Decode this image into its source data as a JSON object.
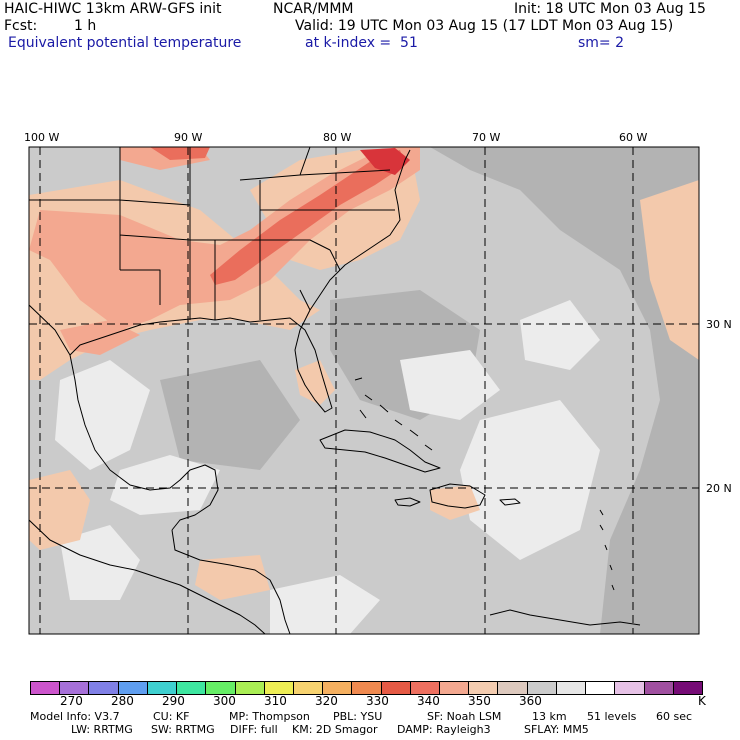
{
  "header": {
    "model": "HAIC-HIWC 13km ARW-GFS init",
    "org": "NCAR/MMM",
    "init": "Init: 18 UTC Mon 03 Aug 15",
    "fcst_label": "Fcst:",
    "fcst_value": "1 h",
    "valid": "Valid: 19 UTC Mon 03 Aug 15 (17 LDT Mon 03 Aug 15)",
    "field": "Equivalent potential temperature",
    "level": "at k-index =  51",
    "smooth": "sm= 2"
  },
  "map": {
    "lon_labels": [
      "100 W",
      "90 W",
      "80 W",
      "70 W",
      "60 W"
    ],
    "lat_labels": [
      "30 N",
      "20 N"
    ],
    "colors": {
      "land_background": "#cbcbcb",
      "dark_gray": "#b3b3b3",
      "light": "#ececec",
      "peach": "#f3c9ac",
      "salmon": "#f3a890",
      "red": "#ea6e5c",
      "deep_red": "#d8343a"
    }
  },
  "colorbar": {
    "colors": [
      "#cc55cc",
      "#a670d8",
      "#8080e6",
      "#5f9ef0",
      "#3fd0d0",
      "#3ee6a0",
      "#66ee66",
      "#aaee55",
      "#eeee55",
      "#f7d370",
      "#f5b060",
      "#f08a50",
      "#e55a45",
      "#ee7060",
      "#f3a890",
      "#f3ccb0",
      "#ddc9be",
      "#cbcbcb",
      "#e6e6e6",
      "#ffffff",
      "#e6c2e6",
      "#a050a0",
      "#760c76"
    ],
    "labels": [
      "270",
      "280",
      "290",
      "300",
      "310",
      "320",
      "330",
      "340",
      "350",
      "360"
    ],
    "unit": "K"
  },
  "footer": {
    "line1": {
      "model_info": "Model Info: V3.7",
      "cu": "CU: KF",
      "mp": "MP: Thompson",
      "pbl": "PBL: YSU",
      "sf": "SF: Noah LSM",
      "res": "13 km",
      "levels": "51 levels",
      "dt": "60 sec"
    },
    "line2": {
      "lw": "LW: RRTMG",
      "sw": "SW: RRTMG",
      "diff": "DIFF: full",
      "km": "KM: 2D Smagor",
      "damp": "DAMP: Rayleigh3",
      "sflay": "SFLAY: MM5"
    }
  }
}
